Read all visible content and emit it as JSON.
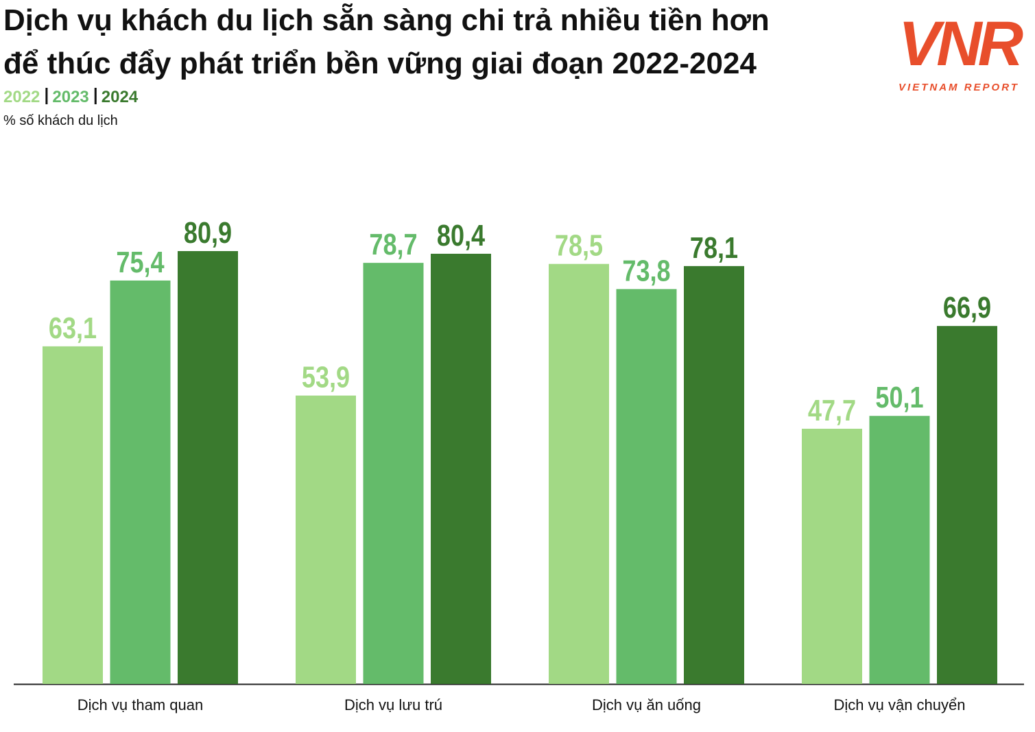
{
  "chart_data": {
    "type": "bar",
    "title": [
      "Dịch vụ khách du lịch sẵn sàng chi trả nhiều tiền hơn",
      "để thúc đẩy phát triển bền vững giai đoạn 2022-2024"
    ],
    "y_label": "% số khách du lịch",
    "logo": {
      "mark": "VNR",
      "text": "VIETNAM REPORT"
    },
    "categories": [
      "Dịch vụ tham quan",
      "Dịch vụ lưu trú",
      "Dịch vụ ăn uống",
      "Dịch vụ vận chuyển"
    ],
    "series": [
      {
        "name": "2022",
        "color": "#a2d985",
        "values": [
          63.1,
          53.9,
          78.5,
          47.7
        ],
        "value_labels": [
          "63,1",
          "53,9",
          "78,5",
          "47,7"
        ]
      },
      {
        "name": "2023",
        "color": "#64bb6a",
        "values": [
          75.4,
          78.7,
          73.8,
          50.1
        ],
        "value_labels": [
          "75,4",
          "78,7",
          "73,8",
          "50,1"
        ]
      },
      {
        "name": "2024",
        "color": "#3a7a2e",
        "values": [
          80.9,
          80.4,
          78.1,
          66.9
        ],
        "value_labels": [
          "80,9",
          "80,4",
          "78,1",
          "66,9"
        ]
      }
    ]
  }
}
